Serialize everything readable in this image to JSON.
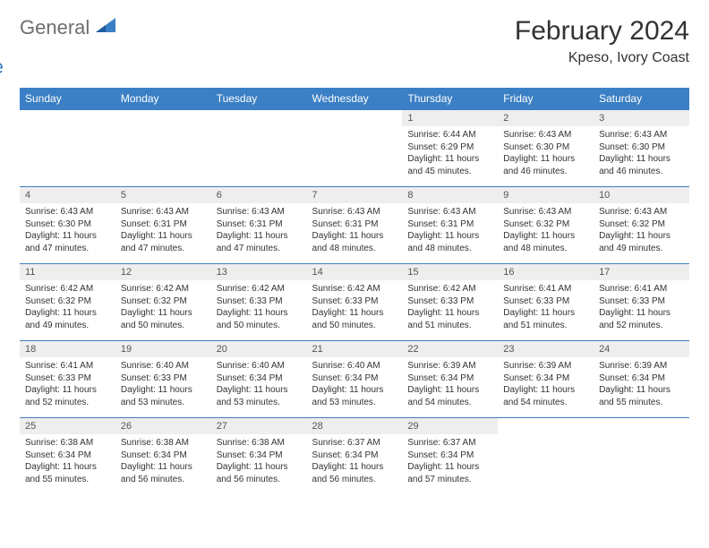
{
  "logo": {
    "word1": "General",
    "word2": "Blue"
  },
  "title": "February 2024",
  "location": "Kpeso, Ivory Coast",
  "theme": {
    "header_bg": "#3b7fc4",
    "header_fg": "#ffffff",
    "daynum_bg": "#eeeeee",
    "border": "#3b7fc4",
    "text": "#333333",
    "logo_gray": "#6e6e6e",
    "logo_blue": "#3b7fc4"
  },
  "dayHeaders": [
    "Sunday",
    "Monday",
    "Tuesday",
    "Wednesday",
    "Thursday",
    "Friday",
    "Saturday"
  ],
  "weeks": [
    [
      null,
      null,
      null,
      null,
      {
        "n": "1",
        "sr": "6:44 AM",
        "ss": "6:29 PM",
        "dl": "11 hours and 45 minutes."
      },
      {
        "n": "2",
        "sr": "6:43 AM",
        "ss": "6:30 PM",
        "dl": "11 hours and 46 minutes."
      },
      {
        "n": "3",
        "sr": "6:43 AM",
        "ss": "6:30 PM",
        "dl": "11 hours and 46 minutes."
      }
    ],
    [
      {
        "n": "4",
        "sr": "6:43 AM",
        "ss": "6:30 PM",
        "dl": "11 hours and 47 minutes."
      },
      {
        "n": "5",
        "sr": "6:43 AM",
        "ss": "6:31 PM",
        "dl": "11 hours and 47 minutes."
      },
      {
        "n": "6",
        "sr": "6:43 AM",
        "ss": "6:31 PM",
        "dl": "11 hours and 47 minutes."
      },
      {
        "n": "7",
        "sr": "6:43 AM",
        "ss": "6:31 PM",
        "dl": "11 hours and 48 minutes."
      },
      {
        "n": "8",
        "sr": "6:43 AM",
        "ss": "6:31 PM",
        "dl": "11 hours and 48 minutes."
      },
      {
        "n": "9",
        "sr": "6:43 AM",
        "ss": "6:32 PM",
        "dl": "11 hours and 48 minutes."
      },
      {
        "n": "10",
        "sr": "6:43 AM",
        "ss": "6:32 PM",
        "dl": "11 hours and 49 minutes."
      }
    ],
    [
      {
        "n": "11",
        "sr": "6:42 AM",
        "ss": "6:32 PM",
        "dl": "11 hours and 49 minutes."
      },
      {
        "n": "12",
        "sr": "6:42 AM",
        "ss": "6:32 PM",
        "dl": "11 hours and 50 minutes."
      },
      {
        "n": "13",
        "sr": "6:42 AM",
        "ss": "6:33 PM",
        "dl": "11 hours and 50 minutes."
      },
      {
        "n": "14",
        "sr": "6:42 AM",
        "ss": "6:33 PM",
        "dl": "11 hours and 50 minutes."
      },
      {
        "n": "15",
        "sr": "6:42 AM",
        "ss": "6:33 PM",
        "dl": "11 hours and 51 minutes."
      },
      {
        "n": "16",
        "sr": "6:41 AM",
        "ss": "6:33 PM",
        "dl": "11 hours and 51 minutes."
      },
      {
        "n": "17",
        "sr": "6:41 AM",
        "ss": "6:33 PM",
        "dl": "11 hours and 52 minutes."
      }
    ],
    [
      {
        "n": "18",
        "sr": "6:41 AM",
        "ss": "6:33 PM",
        "dl": "11 hours and 52 minutes."
      },
      {
        "n": "19",
        "sr": "6:40 AM",
        "ss": "6:33 PM",
        "dl": "11 hours and 53 minutes."
      },
      {
        "n": "20",
        "sr": "6:40 AM",
        "ss": "6:34 PM",
        "dl": "11 hours and 53 minutes."
      },
      {
        "n": "21",
        "sr": "6:40 AM",
        "ss": "6:34 PM",
        "dl": "11 hours and 53 minutes."
      },
      {
        "n": "22",
        "sr": "6:39 AM",
        "ss": "6:34 PM",
        "dl": "11 hours and 54 minutes."
      },
      {
        "n": "23",
        "sr": "6:39 AM",
        "ss": "6:34 PM",
        "dl": "11 hours and 54 minutes."
      },
      {
        "n": "24",
        "sr": "6:39 AM",
        "ss": "6:34 PM",
        "dl": "11 hours and 55 minutes."
      }
    ],
    [
      {
        "n": "25",
        "sr": "6:38 AM",
        "ss": "6:34 PM",
        "dl": "11 hours and 55 minutes."
      },
      {
        "n": "26",
        "sr": "6:38 AM",
        "ss": "6:34 PM",
        "dl": "11 hours and 56 minutes."
      },
      {
        "n": "27",
        "sr": "6:38 AM",
        "ss": "6:34 PM",
        "dl": "11 hours and 56 minutes."
      },
      {
        "n": "28",
        "sr": "6:37 AM",
        "ss": "6:34 PM",
        "dl": "11 hours and 56 minutes."
      },
      {
        "n": "29",
        "sr": "6:37 AM",
        "ss": "6:34 PM",
        "dl": "11 hours and 57 minutes."
      },
      null,
      null
    ]
  ],
  "labels": {
    "sunrise": "Sunrise:",
    "sunset": "Sunset:",
    "daylight": "Daylight:"
  }
}
